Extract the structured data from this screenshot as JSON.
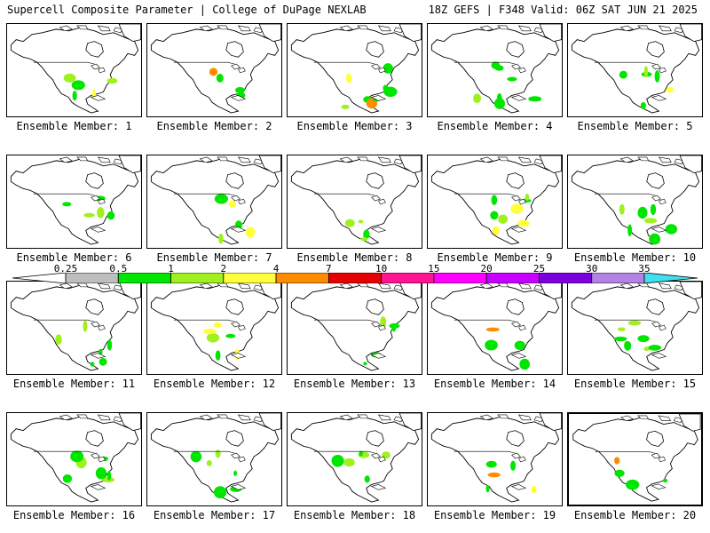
{
  "header": {
    "left_title": "Supercell Composite Parameter | College of DuPage NEXLAB",
    "right_title": "18Z GEFS | F348 Valid: 06Z SAT JUN 21 2025"
  },
  "panels": [
    {
      "label": "Ensemble Member: 1"
    },
    {
      "label": "Ensemble Member: 2"
    },
    {
      "label": "Ensemble Member: 3"
    },
    {
      "label": "Ensemble Member: 4"
    },
    {
      "label": "Ensemble Member: 5"
    },
    {
      "label": "Ensemble Member: 6"
    },
    {
      "label": "Ensemble Member: 7"
    },
    {
      "label": "Ensemble Member: 8"
    },
    {
      "label": "Ensemble Member: 9"
    },
    {
      "label": "Ensemble Member: 10"
    },
    {
      "label": "Ensemble Member: 11"
    },
    {
      "label": "Ensemble Member: 12"
    },
    {
      "label": "Ensemble Member: 13"
    },
    {
      "label": "Ensemble Member: 14"
    },
    {
      "label": "Ensemble Member: 15"
    },
    {
      "label": "Ensemble Member: 16"
    },
    {
      "label": "Ensemble Member: 17"
    },
    {
      "label": "Ensemble Member: 18"
    },
    {
      "label": "Ensemble Member: 19"
    },
    {
      "label": "Ensemble Member: 20"
    }
  ],
  "colorbar": {
    "ticks": [
      "0.25",
      "0.5",
      "1",
      "2",
      "4",
      "7",
      "10",
      "15",
      "20",
      "25",
      "30",
      "35"
    ],
    "colors": [
      "#bebebe",
      "#00e600",
      "#a0f020",
      "#ffff3c",
      "#ff8c00",
      "#e60000",
      "#ff1493",
      "#ff00ff",
      "#c800ff",
      "#7b00e0",
      "#b482e6",
      "#40e0f0"
    ]
  }
}
